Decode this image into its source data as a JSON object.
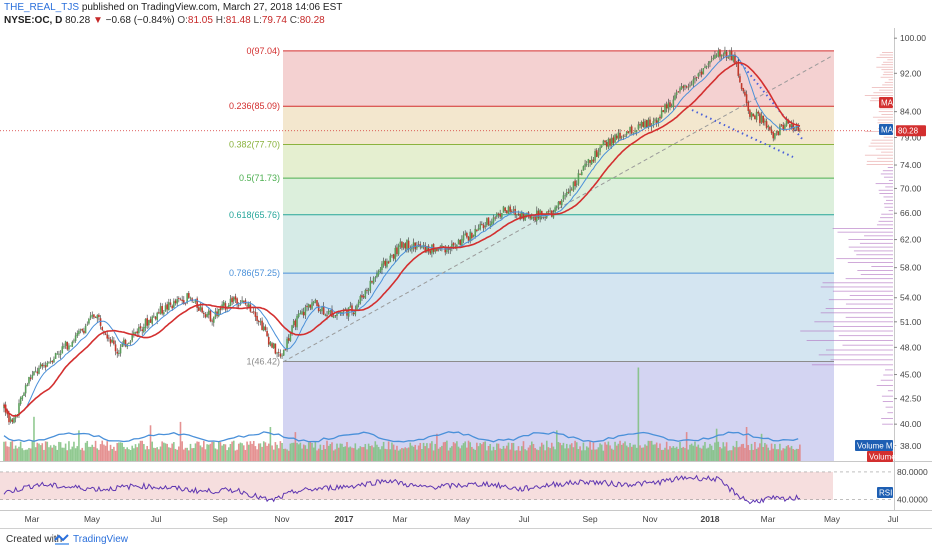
{
  "header": {
    "author": "THE_REAL_TJS",
    "published_text": "published on TradingView.com, March 27, 2018 14:06 EST",
    "symbol": "NYSE:OC, D",
    "last": "80.28",
    "change_arrow": "▼",
    "change": "−0.68 (−0.84%)",
    "open_label": "O:",
    "open": "81.05",
    "high_label": "H:",
    "high": "81.48",
    "low_label": "L:",
    "low": "79.74",
    "close_label": "C:",
    "close": "80.28"
  },
  "footer": {
    "created_with": "Created with",
    "brand": "TradingView"
  },
  "colors": {
    "up": "#5a9e5a",
    "down": "#c0392b",
    "ma_fast": "#4a90d9",
    "ma_slow": "#d32f2f",
    "rsi": "#5e35b1",
    "fib_line_0": "#d32f2f",
    "fib_line_0236": "#d32f2f",
    "fib_line_0382": "#8bb33e",
    "fib_line_05": "#4caf50",
    "fib_line_0618": "#26a69a",
    "fib_line_0786": "#4a90d9",
    "fib_line_1": "#8c8c8c",
    "current_price_line": "#d32f2f",
    "trendline": "#4a5fd9"
  },
  "chart_data": {
    "type": "candlestick",
    "symbol": "NYSE:OC",
    "interval": "D",
    "x_tick_labels": [
      "Mar",
      "May",
      "Jul",
      "Sep",
      "Nov",
      "2017",
      "Mar",
      "May",
      "Jul",
      "Sep",
      "Nov",
      "2018",
      "Mar",
      "May",
      "Jul"
    ],
    "y_tick_labels": [
      "100.00",
      "92.00",
      "84.00",
      "79.00",
      "74.00",
      "70.00",
      "66.00",
      "62.00",
      "58.00",
      "54.00",
      "51.00",
      "48.00",
      "45.00",
      "42.50",
      "40.00",
      "38.00"
    ],
    "y_log_scale": true,
    "ylim": [
      37,
      101
    ],
    "current_price": 80.28,
    "current_price_label": "80.28",
    "fibonacci": {
      "levels": [
        {
          "ratio": 0,
          "price": 97.04,
          "label": "0(97.04)"
        },
        {
          "ratio": 0.236,
          "price": 85.09,
          "label": "0.236(85.09)"
        },
        {
          "ratio": 0.382,
          "price": 77.7,
          "label": "0.382(77.70)"
        },
        {
          "ratio": 0.5,
          "price": 71.73,
          "label": "0.5(71.73)"
        },
        {
          "ratio": 0.618,
          "price": 65.76,
          "label": "0.618(65.76)"
        },
        {
          "ratio": 0.786,
          "price": 57.25,
          "label": "0.786(57.25)"
        },
        {
          "ratio": 1,
          "price": 46.42,
          "label": "1(46.42)"
        }
      ],
      "zone_colors": [
        "#f2c9c9",
        "#f1e3c6",
        "#e1ecc8",
        "#d6ecd6",
        "#cfe7e3",
        "#cde0ef",
        "#dcdcdc",
        "#cbcdf0"
      ]
    },
    "price_anchors": [
      {
        "t": 0,
        "p": 41.5
      },
      {
        "t": 5,
        "p": 40.0
      },
      {
        "t": 15,
        "p": 44.5
      },
      {
        "t": 30,
        "p": 47.0
      },
      {
        "t": 45,
        "p": 49.5
      },
      {
        "t": 55,
        "p": 52.0
      },
      {
        "t": 68,
        "p": 47.5
      },
      {
        "t": 80,
        "p": 50.0
      },
      {
        "t": 95,
        "p": 52.5
      },
      {
        "t": 110,
        "p": 54.0
      },
      {
        "t": 125,
        "p": 51.5
      },
      {
        "t": 138,
        "p": 54.0
      },
      {
        "t": 150,
        "p": 52.5
      },
      {
        "t": 160,
        "p": 48.5
      },
      {
        "t": 166,
        "p": 46.8
      },
      {
        "t": 175,
        "p": 51.0
      },
      {
        "t": 185,
        "p": 53.5
      },
      {
        "t": 195,
        "p": 52.0
      },
      {
        "t": 210,
        "p": 52.5
      },
      {
        "t": 225,
        "p": 57.5
      },
      {
        "t": 240,
        "p": 61.5
      },
      {
        "t": 255,
        "p": 60.5
      },
      {
        "t": 270,
        "p": 61.0
      },
      {
        "t": 285,
        "p": 63.5
      },
      {
        "t": 300,
        "p": 66.5
      },
      {
        "t": 315,
        "p": 65.5
      },
      {
        "t": 330,
        "p": 66.0
      },
      {
        "t": 345,
        "p": 72.0
      },
      {
        "t": 360,
        "p": 77.5
      },
      {
        "t": 375,
        "p": 80.0
      },
      {
        "t": 390,
        "p": 82.0
      },
      {
        "t": 405,
        "p": 87.5
      },
      {
        "t": 420,
        "p": 93.0
      },
      {
        "t": 430,
        "p": 96.5
      },
      {
        "t": 438,
        "p": 96.0
      },
      {
        "t": 447,
        "p": 84.0
      },
      {
        "t": 455,
        "p": 82.5
      },
      {
        "t": 462,
        "p": 79.0
      },
      {
        "t": 470,
        "p": 82.0
      },
      {
        "t": 478,
        "p": 80.3
      }
    ],
    "volume_spikes": [
      {
        "t": 18,
        "v": 2.6
      },
      {
        "t": 45,
        "v": 1.8
      },
      {
        "t": 88,
        "v": 2.1
      },
      {
        "t": 106,
        "v": 2.3
      },
      {
        "t": 160,
        "v": 2.0
      },
      {
        "t": 175,
        "v": 1.7
      },
      {
        "t": 260,
        "v": 1.6
      },
      {
        "t": 332,
        "v": 1.8
      },
      {
        "t": 381,
        "v": 5.5
      },
      {
        "t": 410,
        "v": 1.7
      },
      {
        "t": 428,
        "v": 1.9
      },
      {
        "t": 446,
        "v": 2.0
      },
      {
        "t": 455,
        "v": 1.6
      }
    ],
    "rsi_levels": [
      {
        "value": 80,
        "label": "80.0000"
      },
      {
        "value": 40,
        "label": "40.0000"
      }
    ],
    "rsi_ylim": [
      28,
      90
    ],
    "rsi_anchors": [
      {
        "t": 0,
        "r": 50
      },
      {
        "t": 20,
        "r": 62
      },
      {
        "t": 40,
        "r": 58
      },
      {
        "t": 60,
        "r": 55
      },
      {
        "t": 80,
        "r": 60
      },
      {
        "t": 100,
        "r": 57
      },
      {
        "t": 120,
        "r": 52
      },
      {
        "t": 140,
        "r": 54
      },
      {
        "t": 160,
        "r": 38
      },
      {
        "t": 175,
        "r": 52
      },
      {
        "t": 190,
        "r": 56
      },
      {
        "t": 210,
        "r": 60
      },
      {
        "t": 230,
        "r": 68
      },
      {
        "t": 250,
        "r": 58
      },
      {
        "t": 270,
        "r": 60
      },
      {
        "t": 290,
        "r": 63
      },
      {
        "t": 310,
        "r": 55
      },
      {
        "t": 330,
        "r": 62
      },
      {
        "t": 350,
        "r": 66
      },
      {
        "t": 370,
        "r": 62
      },
      {
        "t": 390,
        "r": 64
      },
      {
        "t": 410,
        "r": 72
      },
      {
        "t": 428,
        "r": 70
      },
      {
        "t": 440,
        "r": 48
      },
      {
        "t": 448,
        "r": 36
      },
      {
        "t": 460,
        "r": 42
      },
      {
        "t": 470,
        "r": 40
      },
      {
        "t": 478,
        "r": 44
      }
    ],
    "legend_labels": {
      "ma_price": "MA",
      "ma_price_2": "MA",
      "volume_ma": "Volume MA",
      "volume": "Volume",
      "rsi": "RSI"
    },
    "volume_profile": "right-side horizontal histogram",
    "trendlines": "dotted descending channel from Jan 2018 high; dashed line from Nov 2016 low toward upper right"
  }
}
